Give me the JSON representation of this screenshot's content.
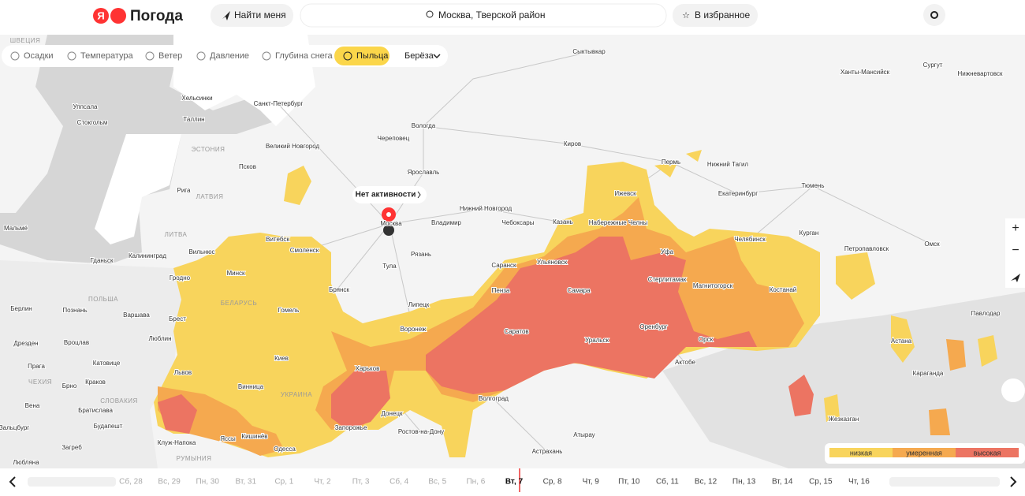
{
  "header": {
    "logo_letter": "Я",
    "logo_text": "Погода",
    "locate": "Найти меня",
    "search": "Москва, Тверской район",
    "favorite": "В избранное"
  },
  "layers": [
    {
      "label": "Осадки"
    },
    {
      "label": "Температура"
    },
    {
      "label": "Ветер"
    },
    {
      "label": "Давление"
    },
    {
      "label": "Глубина снега"
    },
    {
      "label": "Пыльца",
      "active": true
    }
  ],
  "plant": "Берёза",
  "map": {
    "popup": "Нет активности",
    "countries": [
      "ШВЕЦИЯ",
      "ЭСТОНИЯ",
      "ЛАТВИЯ",
      "ЛИТВА",
      "БЕЛАРУСЬ",
      "ПОЛЬША",
      "ЧЕХИЯ",
      "СЛОВАКИЯ",
      "УКРАИНА",
      "РУМЫНИЯ"
    ],
    "cities": [
      "Сыктывкар",
      "Сургут",
      "Ханты-Мансийск",
      "Нижневартовск",
      "Хельсинки",
      "Санкт-Петербург",
      "Уппсала",
      "Стокгольм",
      "Таллин",
      "Вологда",
      "Череповец",
      "Киров",
      "Великий Новгород",
      "Псков",
      "Нижний Тагил",
      "Пермь",
      "Ярославль",
      "Рига",
      "Ижевск",
      "Екатеринбург",
      "Тюмень",
      "Нижний Новгород",
      "Набережные Челны",
      "Москва",
      "Владимир",
      "Чебоксары",
      "Казань",
      "Мальмё",
      "Вильнюс",
      "Витебск",
      "Смоленск",
      "Челябинск",
      "Курган",
      "Петропавловск",
      "Омск",
      "Гданьск",
      "Калининград",
      "Рязань",
      "Уфа",
      "Ульяновск",
      "Саранск",
      "Тула",
      "Минск",
      "Гродно",
      "Стерлитамак",
      "Магнитогорск",
      "Брянск",
      "Пенза",
      "Самара",
      "Костанай",
      "Берлин",
      "Познань",
      "Варшава",
      "Гомель",
      "Липецк",
      "Павлодар",
      "Брест",
      "Оренбург",
      "Воронеж",
      "Саратов",
      "Орск",
      "Астана",
      "Дрезден",
      "Вроцлав",
      "Люблин",
      "Уральск",
      "Прага",
      "Катовице",
      "Киев",
      "Актобе",
      "Караганда",
      "Брно",
      "Краков",
      "Львов",
      "Харьков",
      "Вена",
      "Братислава",
      "Винница",
      "Волгоград",
      "Донецк",
      "Жезказган",
      "Зальцбург",
      "Будапешт",
      "Запорожье",
      "Ростов-на-Дону",
      "Кишинёв",
      "Атырау",
      "Клуж-Напока",
      "Яссы",
      "Одесса",
      "Астрахань",
      "Загреб",
      "Любляна"
    ],
    "controls": [
      "+",
      "−"
    ]
  },
  "legend": [
    "низкая",
    "умеренная",
    "высокая"
  ],
  "timeline": [
    {
      "label": "Сб, 28"
    },
    {
      "label": "Вс, 29"
    },
    {
      "label": "Пн, 30"
    },
    {
      "label": "Вт, 31"
    },
    {
      "label": "Ср, 1"
    },
    {
      "label": "Чт, 2"
    },
    {
      "label": "Пт, 3"
    },
    {
      "label": "Сб, 4"
    },
    {
      "label": "Вс, 5"
    },
    {
      "label": "Пн, 6"
    },
    {
      "label": "Вт, 7",
      "active": true
    },
    {
      "label": "Ср, 8"
    },
    {
      "label": "Чт, 9"
    },
    {
      "label": "Пт, 10"
    },
    {
      "label": "Сб, 11"
    },
    {
      "label": "Вс, 12"
    },
    {
      "label": "Пн, 13"
    },
    {
      "label": "Вт, 14"
    },
    {
      "label": "Ср, 15"
    },
    {
      "label": "Чт, 16"
    }
  ]
}
